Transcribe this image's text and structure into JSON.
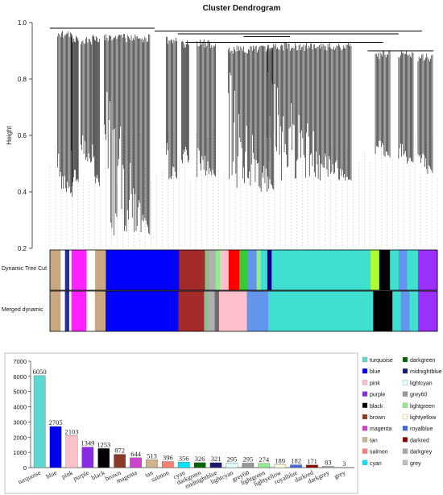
{
  "chart_data": [
    {
      "type": "dendrogram",
      "title": "Cluster Dendrogram",
      "ylabel": "Height",
      "ylim": [
        0.2,
        1.0
      ],
      "yticks": [
        0.2,
        0.4,
        0.6,
        0.8,
        1.0
      ],
      "tracks": [
        {
          "name": "Dynamic Tree Cut",
          "segments": [
            [
              "#c9a882",
              0.025
            ],
            [
              "#ffffff",
              0.01
            ],
            [
              "#2a2aa8",
              0.01
            ],
            [
              "#ffffff",
              0.005
            ],
            [
              "#ff22ff",
              0.035
            ],
            [
              "#ffffff",
              0.02
            ],
            [
              "#c9a882",
              0.025
            ],
            [
              "#0000ff",
              0.17
            ],
            [
              "#a52a2a",
              0.06
            ],
            [
              "#8fbc8f",
              0.01
            ],
            [
              "#b0b0b0",
              0.015
            ],
            [
              "#90ee90",
              0.01
            ],
            [
              "#ffc0cb",
              0.02
            ],
            [
              "#ff0000",
              0.025
            ],
            [
              "#33cc33",
              0.02
            ],
            [
              "#6495ed",
              0.02
            ],
            [
              "#90ee90",
              0.01
            ],
            [
              "#40e0d0",
              0.015
            ],
            [
              "#000080",
              0.01
            ],
            [
              "#40e0d0",
              0.23
            ],
            [
              "#adff2f",
              0.02
            ],
            [
              "#000000",
              0.025
            ],
            [
              "#40e0d0",
              0.02
            ],
            [
              "#6495ed",
              0.02
            ],
            [
              "#40e0d0",
              0.025
            ],
            [
              "#9b30ff",
              0.045
            ]
          ]
        },
        {
          "name": "Merged dynamic",
          "segments": [
            [
              "#c9a882",
              0.025
            ],
            [
              "#ffffff",
              0.01
            ],
            [
              "#2a2aa8",
              0.01
            ],
            [
              "#ffffff",
              0.005
            ],
            [
              "#ff22ff",
              0.035
            ],
            [
              "#ffffff",
              0.02
            ],
            [
              "#c9a882",
              0.025
            ],
            [
              "#0000ff",
              0.17
            ],
            [
              "#a52a2a",
              0.06
            ],
            [
              "#8fbc8f",
              0.01
            ],
            [
              "#b0b0b0",
              0.015
            ],
            [
              "#6e6e6e",
              0.01
            ],
            [
              "#ffc0cb",
              0.065
            ],
            [
              "#6495ed",
              0.05
            ],
            [
              "#40e0d0",
              0.245
            ],
            [
              "#000000",
              0.045
            ],
            [
              "#40e0d0",
              0.02
            ],
            [
              "#6495ed",
              0.02
            ],
            [
              "#40e0d0",
              0.02
            ],
            [
              "#9b30ff",
              0.045
            ]
          ]
        }
      ]
    },
    {
      "type": "bar",
      "ylim": [
        0,
        7000
      ],
      "yticks": [
        0,
        1000,
        2000,
        3000,
        4000,
        5000,
        6000,
        7000
      ],
      "categories": [
        "turquoise",
        "blue",
        "pink",
        "purple",
        "black",
        "brown",
        "magenta",
        "tan",
        "salmon",
        "cyan",
        "darkgreen",
        "midnightblue",
        "lightcyan",
        "grey60",
        "lightgreen",
        "lightyellow",
        "royalblue",
        "darkred",
        "darkgrey",
        "grey"
      ],
      "values": [
        6050,
        2705,
        2103,
        1349,
        1253,
        872,
        644,
        513,
        396,
        356,
        326,
        321,
        295,
        295,
        274,
        189,
        182,
        171,
        83,
        3
      ],
      "colors": [
        "#5fd6d0",
        "#0000f0",
        "#ffc0cb",
        "#8a2be2",
        "#000000",
        "#8b3a2a",
        "#cc44cc",
        "#d2b48c",
        "#fa8072",
        "#00e5ff",
        "#006400",
        "#191970",
        "#e0ffff",
        "#999999",
        "#90ee90",
        "#ffffe0",
        "#4169e1",
        "#8b0000",
        "#a9a9a9",
        "#bebebe"
      ],
      "legend": [
        {
          "label": "turquoise",
          "color": "#5fd6d0"
        },
        {
          "label": "blue",
          "color": "#0000f0"
        },
        {
          "label": "pink",
          "color": "#ffc0cb"
        },
        {
          "label": "purple",
          "color": "#8a2be2"
        },
        {
          "label": "black",
          "color": "#000000"
        },
        {
          "label": "brown",
          "color": "#8b3a2a"
        },
        {
          "label": "magenta",
          "color": "#cc44cc"
        },
        {
          "label": "tan",
          "color": "#d2b48c"
        },
        {
          "label": "salmon",
          "color": "#fa8072"
        },
        {
          "label": "cyan",
          "color": "#00e5ff"
        },
        {
          "label": "darkgreen",
          "color": "#006400"
        },
        {
          "label": "midnightblue",
          "color": "#191970"
        },
        {
          "label": "lightcyan",
          "color": "#e0ffff"
        },
        {
          "label": "grey60",
          "color": "#999999"
        },
        {
          "label": "lightgreen",
          "color": "#90ee90"
        },
        {
          "label": "lightyellow",
          "color": "#ffffe0"
        },
        {
          "label": "royalblue",
          "color": "#4169e1"
        },
        {
          "label": "darkred",
          "color": "#8b0000"
        },
        {
          "label": "darkgrey",
          "color": "#a9a9a9"
        },
        {
          "label": "grey",
          "color": "#bebebe"
        }
      ]
    }
  ]
}
